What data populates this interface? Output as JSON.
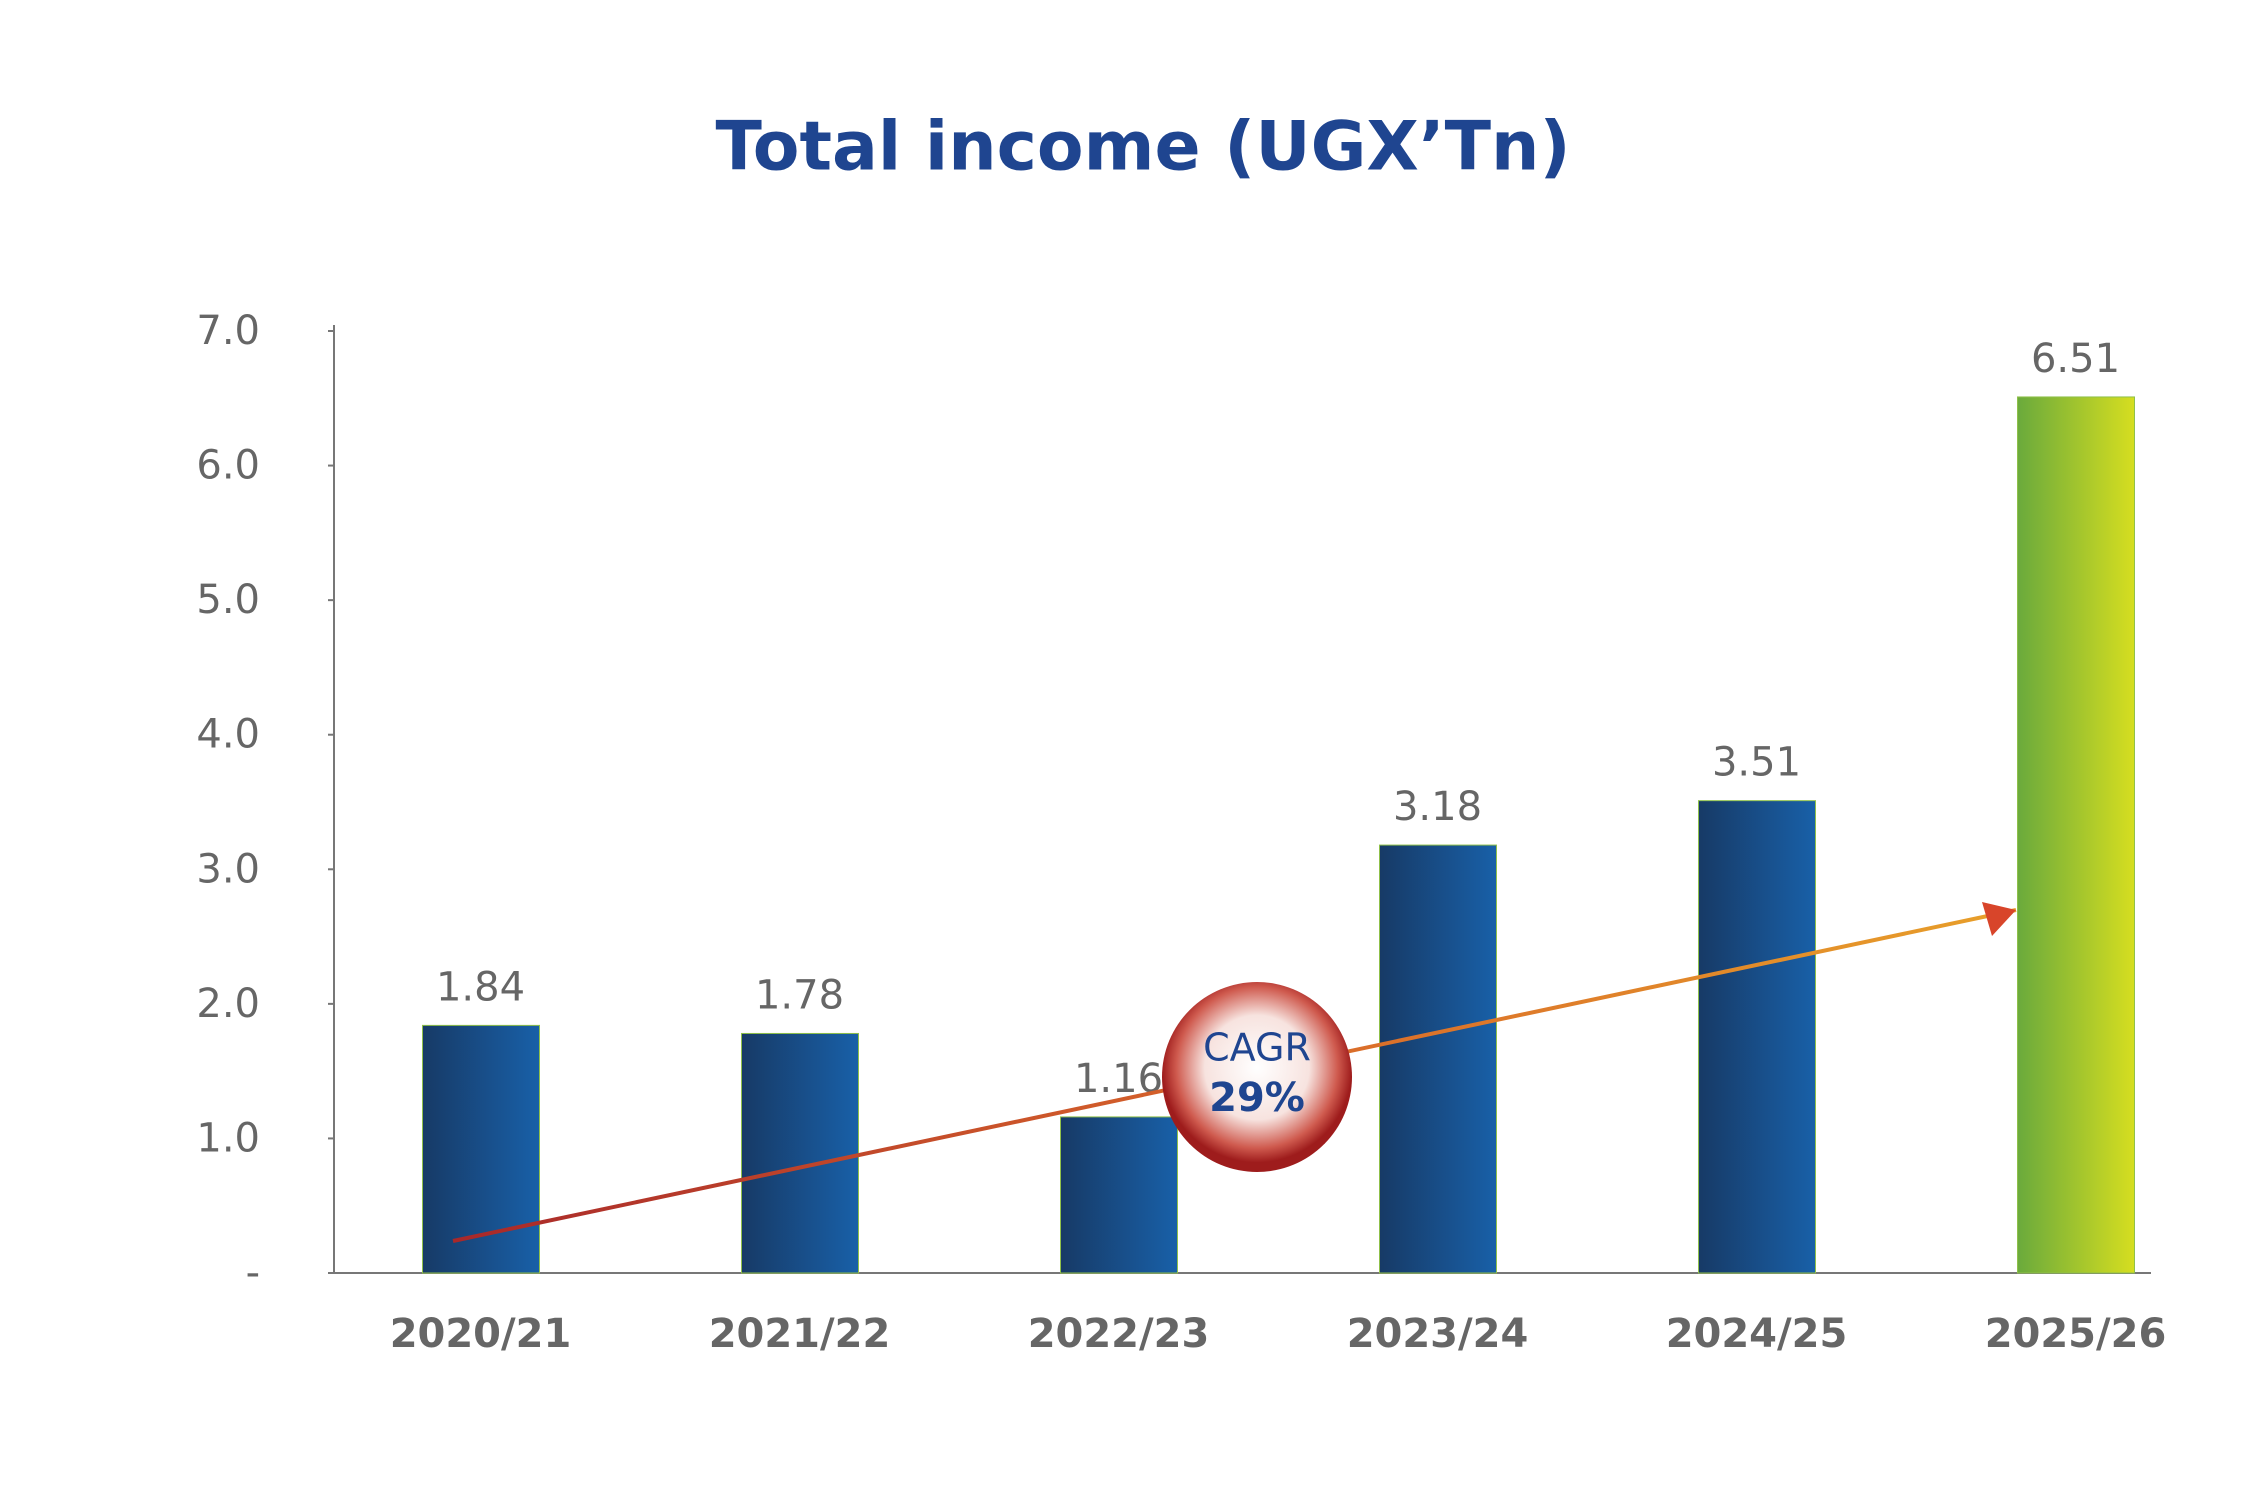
{
  "chart_data": {
    "type": "bar",
    "title": "Total income (UGX’Tn)",
    "categories": [
      "2020/21",
      "2021/22",
      "2022/23",
      "2023/24",
      "2024/25",
      "2025/26"
    ],
    "values": [
      1.84,
      1.78,
      1.16,
      3.18,
      3.51,
      6.51
    ],
    "colors": [
      [
        "#173a66",
        "#1860a8"
      ],
      [
        "#173a66",
        "#1860a8"
      ],
      [
        "#173a66",
        "#1860a8"
      ],
      [
        "#173a66",
        "#1860a8"
      ],
      [
        "#173a66",
        "#1860a8"
      ],
      [
        "#6aaa3c",
        "#d6de20"
      ]
    ],
    "ylim": [
      0,
      7
    ],
    "yticks": [
      {
        "value": 0,
        "label": "-"
      },
      {
        "value": 1,
        "label": "1.0"
      },
      {
        "value": 2,
        "label": "2.0"
      },
      {
        "value": 3,
        "label": "3.0"
      },
      {
        "value": 4,
        "label": "4.0"
      },
      {
        "value": 5,
        "label": "5.0"
      },
      {
        "value": 6,
        "label": "6.0"
      },
      {
        "value": 7,
        "label": "7.0"
      }
    ],
    "grid": false,
    "annotation_lines": [
      "CAGR",
      "29%"
    ]
  }
}
